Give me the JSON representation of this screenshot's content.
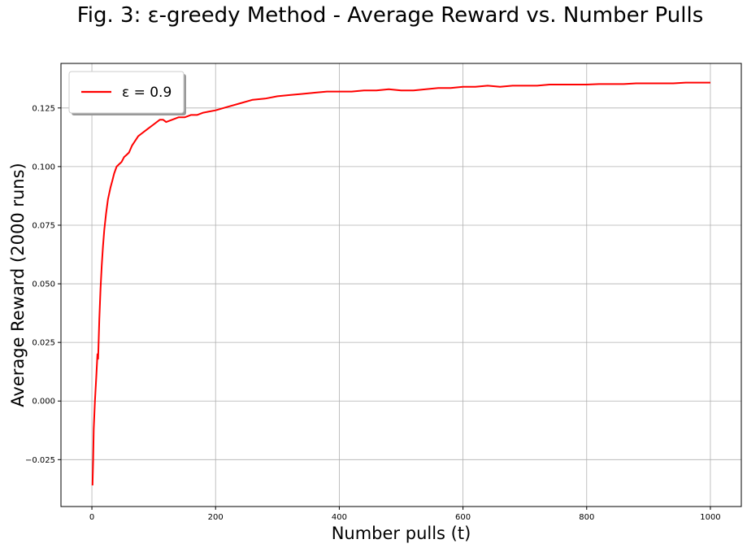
{
  "chart_data": {
    "type": "line",
    "title": "Fig. 3: ε-greedy Method - Average Reward vs. Number Pulls",
    "xlabel": "Number pulls (t)",
    "ylabel": "Average Reward (2000 runs)",
    "xlim": [
      -50,
      1050
    ],
    "ylim": [
      -0.045,
      0.144
    ],
    "x_ticks": [
      0,
      200,
      400,
      600,
      800,
      1000
    ],
    "y_ticks": [
      -0.025,
      0.0,
      0.025,
      0.05,
      0.075,
      0.1,
      0.125
    ],
    "x_tick_labels": [
      "0",
      "200",
      "400",
      "600",
      "800",
      "1000"
    ],
    "y_tick_labels": [
      "−0.025",
      "0.000",
      "0.025",
      "0.050",
      "0.075",
      "0.100",
      "0.125"
    ],
    "grid": true,
    "legend_position": "top-left",
    "series": [
      {
        "name": "ε = 0.9",
        "color": "#ff0000",
        "x": [
          1,
          2,
          3,
          5,
          7,
          9,
          10,
          12,
          14,
          16,
          18,
          20,
          23,
          26,
          30,
          33,
          36,
          40,
          44,
          48,
          52,
          56,
          60,
          65,
          70,
          75,
          80,
          90,
          100,
          110,
          115,
          120,
          130,
          140,
          150,
          160,
          170,
          180,
          190,
          200,
          220,
          240,
          260,
          280,
          300,
          320,
          340,
          360,
          380,
          400,
          420,
          440,
          460,
          480,
          500,
          520,
          540,
          560,
          580,
          600,
          620,
          640,
          660,
          680,
          700,
          720,
          740,
          760,
          780,
          800,
          820,
          840,
          860,
          880,
          900,
          920,
          940,
          960,
          980,
          1000
        ],
        "values": [
          -0.036,
          -0.025,
          -0.012,
          0.0,
          0.01,
          0.02,
          0.018,
          0.035,
          0.048,
          0.058,
          0.066,
          0.073,
          0.08,
          0.086,
          0.091,
          0.094,
          0.097,
          0.1,
          0.101,
          0.102,
          0.104,
          0.105,
          0.106,
          0.109,
          0.111,
          0.113,
          0.114,
          0.116,
          0.118,
          0.12,
          0.12,
          0.119,
          0.12,
          0.121,
          0.121,
          0.122,
          0.122,
          0.123,
          0.1235,
          0.124,
          0.1255,
          0.127,
          0.1285,
          0.129,
          0.13,
          0.1305,
          0.131,
          0.1315,
          0.132,
          0.132,
          0.132,
          0.1325,
          0.1325,
          0.133,
          0.1325,
          0.1325,
          0.133,
          0.1335,
          0.1335,
          0.134,
          0.134,
          0.1345,
          0.134,
          0.1345,
          0.1345,
          0.1345,
          0.135,
          0.135,
          0.135,
          0.135,
          0.1352,
          0.1352,
          0.1352,
          0.1355,
          0.1355,
          0.1355,
          0.1355,
          0.1358,
          0.1358,
          0.1358
        ]
      }
    ]
  }
}
